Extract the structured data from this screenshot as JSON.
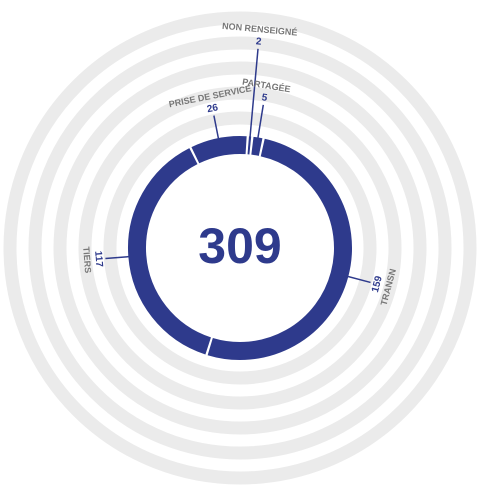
{
  "chart_data": {
    "type": "donut",
    "total": 309,
    "categories": [
      "NON RENSEIGNÉ",
      "PARTAGÉE",
      "TRANSN",
      "TIERS",
      "PRISE DE SERVICE"
    ],
    "values": [
      2,
      5,
      159,
      117,
      26
    ],
    "color": "#2e3a8c"
  }
}
